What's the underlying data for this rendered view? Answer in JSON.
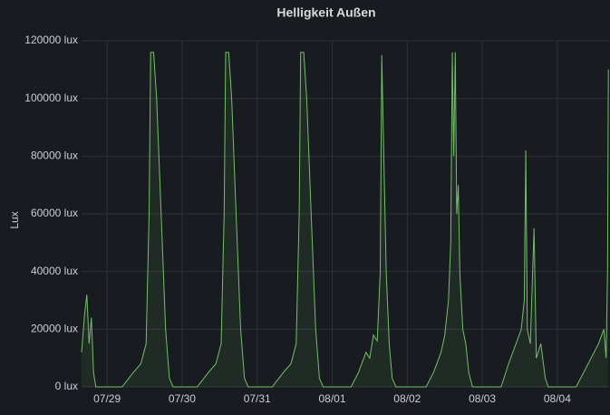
{
  "chart_data": {
    "type": "line",
    "title": "Helligkeit Außen",
    "y_label": "Lux",
    "x": [
      -0.34,
      -0.3,
      -0.27,
      -0.24,
      -0.21,
      -0.18,
      -0.15,
      0.2,
      0.26,
      0.35,
      0.45,
      0.52,
      0.56,
      0.58,
      0.62,
      0.66,
      0.72,
      0.78,
      0.83,
      0.88,
      1.2,
      1.26,
      1.35,
      1.45,
      1.52,
      1.56,
      1.58,
      1.62,
      1.66,
      1.72,
      1.78,
      1.83,
      1.88,
      2.2,
      2.26,
      2.35,
      2.45,
      2.52,
      2.56,
      2.58,
      2.62,
      2.66,
      2.72,
      2.78,
      2.83,
      2.88,
      3.25,
      3.35,
      3.45,
      3.5,
      3.55,
      3.6,
      3.64,
      3.66,
      3.68,
      3.72,
      3.76,
      3.8,
      3.85,
      4.25,
      4.35,
      4.45,
      4.5,
      4.55,
      4.58,
      4.6,
      4.62,
      4.64,
      4.66,
      4.68,
      4.7,
      4.74,
      4.78,
      4.82,
      4.87,
      5.25,
      5.35,
      5.45,
      5.52,
      5.56,
      5.58,
      5.6,
      5.64,
      5.69,
      5.72,
      5.78,
      5.84,
      5.88,
      6.25,
      6.35,
      6.45,
      6.55,
      6.62,
      6.65,
      6.67,
      6.68
    ],
    "series": [
      {
        "color": "#73bf69",
        "values": [
          12000,
          25000,
          32000,
          15000,
          24000,
          5000,
          0,
          0,
          2000,
          5000,
          8000,
          15000,
          60000,
          116000,
          116000,
          100000,
          60000,
          20000,
          3000,
          0,
          0,
          2000,
          5000,
          8000,
          15000,
          60000,
          116000,
          116000,
          100000,
          60000,
          20000,
          3000,
          0,
          0,
          2000,
          5000,
          8000,
          15000,
          60000,
          116000,
          116000,
          100000,
          60000,
          20000,
          3000,
          0,
          0,
          5000,
          12000,
          10000,
          18000,
          16000,
          40000,
          115000,
          90000,
          40000,
          15000,
          3000,
          0,
          0,
          5000,
          12000,
          18000,
          30000,
          50000,
          116000,
          80000,
          116000,
          60000,
          70000,
          40000,
          20000,
          15000,
          5000,
          0,
          0,
          8000,
          15000,
          20000,
          30000,
          82000,
          20000,
          15000,
          55000,
          10000,
          15000,
          3000,
          0,
          0,
          5000,
          10000,
          15000,
          20000,
          10000,
          40000,
          110000
        ]
      }
    ],
    "xlim": [
      -0.34,
      6.69
    ],
    "xticks": [
      {
        "value": 0,
        "label": "07/29"
      },
      {
        "value": 1,
        "label": "07/30"
      },
      {
        "value": 2,
        "label": "07/31"
      },
      {
        "value": 3,
        "label": "08/01"
      },
      {
        "value": 4,
        "label": "08/02"
      },
      {
        "value": 5,
        "label": "08/03"
      },
      {
        "value": 6,
        "label": "08/04"
      }
    ],
    "ylim": [
      0,
      120000
    ],
    "yticks": [
      {
        "value": 0,
        "label": "0 lux"
      },
      {
        "value": 20000,
        "label": "20000 lux"
      },
      {
        "value": 40000,
        "label": "40000 lux"
      },
      {
        "value": 60000,
        "label": "60000 lux"
      },
      {
        "value": 80000,
        "label": "80000 lux"
      },
      {
        "value": 100000,
        "label": "100000 lux"
      },
      {
        "value": 120000,
        "label": "120000 lux"
      }
    ],
    "grid": true
  }
}
